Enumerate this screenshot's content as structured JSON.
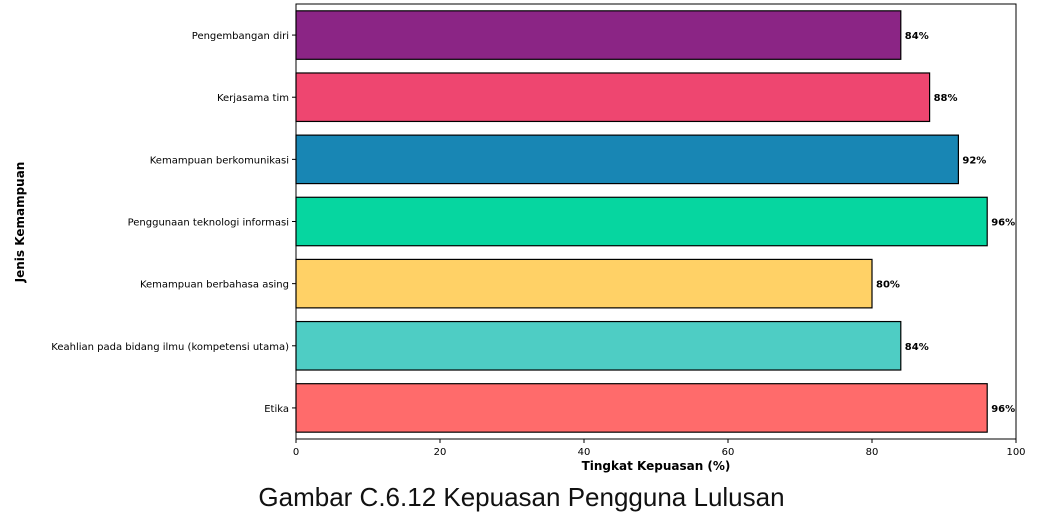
{
  "caption": "Gambar C.6.12 Kepuasan Pengguna Lulusan",
  "chart_data": {
    "type": "bar",
    "orientation": "horizontal",
    "title": "",
    "xlabel": "Tingkat Kepuasan (%)",
    "ylabel": "Jenis Kemampuan",
    "xlim": [
      0,
      100
    ],
    "xticks": [
      "0",
      "20",
      "40",
      "60",
      "80",
      "100"
    ],
    "grid": false,
    "categories": [
      "Pengembangan diri",
      "Kerjasama tim",
      "Kemampuan berkomunikasi",
      "Penggunaan teknologi informasi",
      "Kemampuan berbahasa asing",
      "Keahlian pada bidang ilmu (kompetensi utama)",
      "Etika"
    ],
    "values": [
      84,
      88,
      92,
      96,
      80,
      84,
      96
    ],
    "value_labels": [
      "84%",
      "88%",
      "92%",
      "96%",
      "80%",
      "84%",
      "96%"
    ],
    "colors": [
      "#8B2585",
      "#EE4670",
      "#1886B4",
      "#06D6A0",
      "#FFD166",
      "#4ECDC4",
      "#FF6B6B"
    ]
  }
}
